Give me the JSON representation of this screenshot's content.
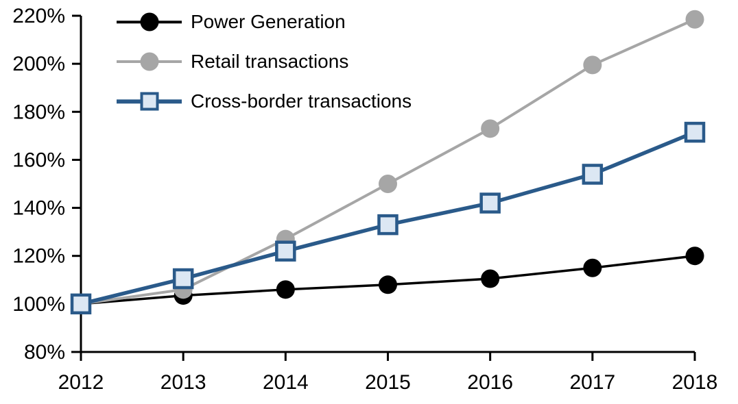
{
  "chart_data": {
    "type": "line",
    "title": "",
    "xlabel": "",
    "ylabel": "",
    "grid": false,
    "legend_position": "top-left-inside",
    "background_color": "#ffffff",
    "axis_color": "#000000",
    "x": [
      2012,
      2013,
      2014,
      2015,
      2016,
      2017,
      2018
    ],
    "x_labels": [
      "2012",
      "2013",
      "2014",
      "2015",
      "2016",
      "2017",
      "2018"
    ],
    "y_axis": {
      "min": 80,
      "max": 220,
      "tick_step": 20,
      "tick_suffix": "%",
      "tick_labels": [
        "80%",
        "100%",
        "120%",
        "140%",
        "160%",
        "180%",
        "200%",
        "220%"
      ]
    },
    "series": [
      {
        "name": "Power Generation",
        "marker": "circle",
        "color": "#000000",
        "marker_fill": "#000000",
        "values": [
          100,
          103.5,
          106,
          108,
          110.5,
          115,
          120
        ]
      },
      {
        "name": "Retail transactions",
        "marker": "circle",
        "color": "#a6a6a6",
        "marker_fill": "#a6a6a6",
        "values": [
          100,
          106,
          127,
          150,
          173,
          199.5,
          218.5
        ]
      },
      {
        "name": "Cross-border transactions",
        "marker": "square",
        "color": "#2a5a8a",
        "marker_fill": "#dce7f3",
        "values": [
          100,
          110.5,
          122,
          133,
          142,
          154,
          171.5
        ]
      }
    ]
  }
}
